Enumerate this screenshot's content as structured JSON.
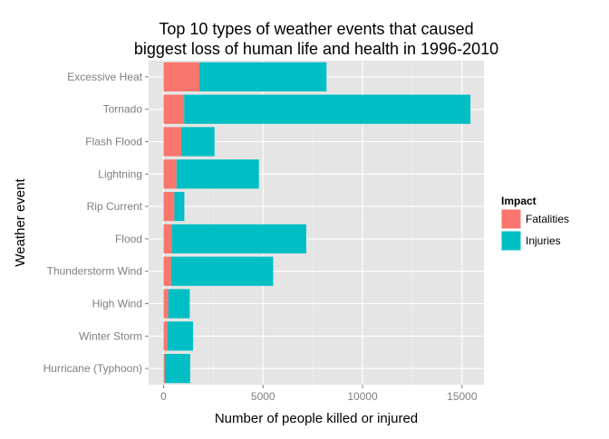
{
  "chart_data": {
    "type": "bar",
    "orientation": "horizontal",
    "stacked": true,
    "title_lines": [
      "Top 10 types of weather events that caused",
      "biggest loss of human life and health in 1996-2010"
    ],
    "xlabel": "Number of people killed or injured",
    "ylabel": "Weather event",
    "categories": [
      "Excessive Heat",
      "Tornado",
      "Flash Flood",
      "Lightning",
      "Rip Current",
      "Flood",
      "Thunderstorm Wind",
      "High Wind",
      "Winter Storm",
      "Hurricane (Typhoon)"
    ],
    "series": [
      {
        "name": "Fatalities",
        "color": "#F8766D",
        "values": [
          1797,
          1036,
          887,
          651,
          542,
          414,
          379,
          235,
          191,
          64
        ]
      },
      {
        "name": "Injuries",
        "color": "#00BFC4",
        "values": [
          6391,
          14386,
          1674,
          4141,
          503,
          6758,
          5129,
          1083,
          1292,
          1275
        ]
      }
    ],
    "xlim": [
      -750,
      16100
    ],
    "xticks": [
      0,
      5000,
      10000,
      15000
    ],
    "xtick_labels": [
      "0",
      "5000",
      "10000",
      "15000"
    ],
    "legend": {
      "title": "Impact",
      "position": "right"
    },
    "grid": true,
    "panel_color": "#E5E5E5",
    "grid_color": "#FFFFFF"
  }
}
